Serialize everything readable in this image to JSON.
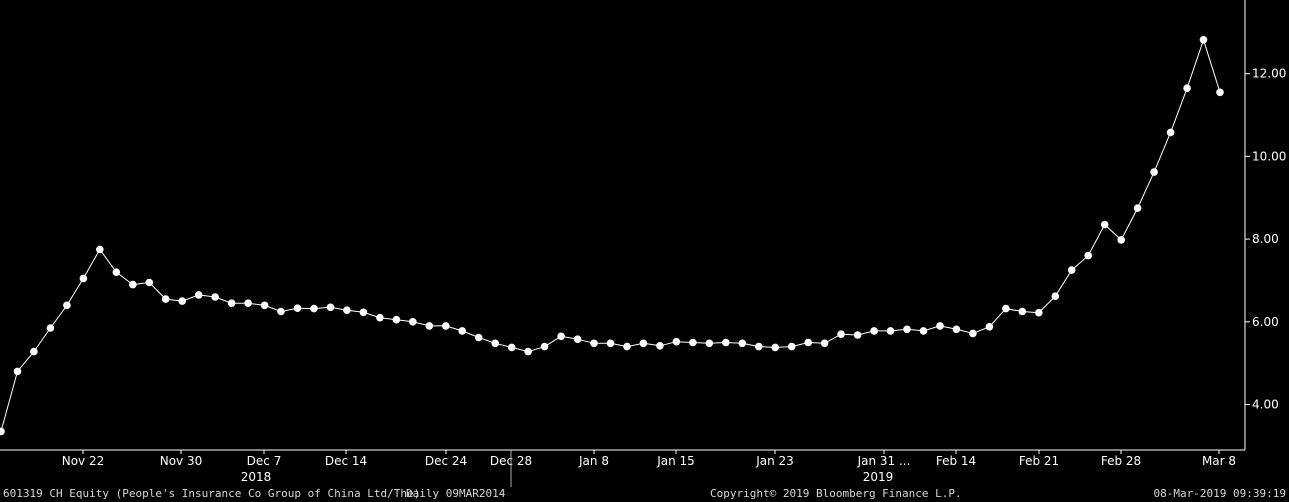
{
  "footer": {
    "ticker": "601319 CH Equity (People's Insurance Co Group of China Ltd/The)",
    "period": "Daily 09MAR2014",
    "copyright": "Copyright© 2019 Bloomberg Finance L.P.",
    "timestamp": "08-Mar-2019 09:39:19"
  },
  "colors": {
    "background": "#000000",
    "line": "#ffffff",
    "axis": "#ffffff"
  },
  "chart_data": {
    "type": "line",
    "title": "",
    "xlabel": "",
    "ylabel": "",
    "ylim": [
      2.9,
      13.5
    ],
    "grid": false,
    "y_ticks": [
      "4.00",
      "6.00",
      "8.00",
      "10.00",
      "12.00"
    ],
    "x_ticks": [
      "Nov 22",
      "Nov 30",
      "Dec 7",
      "Dec 14",
      "Dec 24",
      "Dec 28",
      "Jan 8",
      "Jan 15",
      "Jan 23",
      "Jan 31 ...",
      "Feb 14",
      "Feb 21",
      "Feb 28",
      "Mar 8"
    ],
    "year_labels": [
      "2018",
      "2019"
    ],
    "series": [
      {
        "values": [
          3.35,
          4.8,
          5.28,
          5.85,
          6.4,
          7.05,
          7.75,
          7.2,
          6.9,
          6.95,
          6.55,
          6.5,
          6.65,
          6.6,
          6.45,
          6.45,
          6.4,
          6.25,
          6.33,
          6.32,
          6.35,
          6.28,
          6.23,
          6.1,
          6.05,
          6.0,
          5.9,
          5.9,
          5.78,
          5.62,
          5.48,
          5.38,
          5.28,
          5.4,
          5.65,
          5.58,
          5.48,
          5.48,
          5.4,
          5.48,
          5.42,
          5.52,
          5.5,
          5.48,
          5.5,
          5.48,
          5.4,
          5.38,
          5.4,
          5.5,
          5.48,
          5.7,
          5.68,
          5.78,
          5.78,
          5.82,
          5.78,
          5.9,
          5.82,
          5.72,
          5.88,
          6.32,
          6.25,
          6.22,
          6.62,
          7.25,
          7.6,
          8.35,
          7.98,
          8.75,
          9.62,
          10.58,
          11.65,
          12.82,
          11.55
        ]
      }
    ]
  }
}
